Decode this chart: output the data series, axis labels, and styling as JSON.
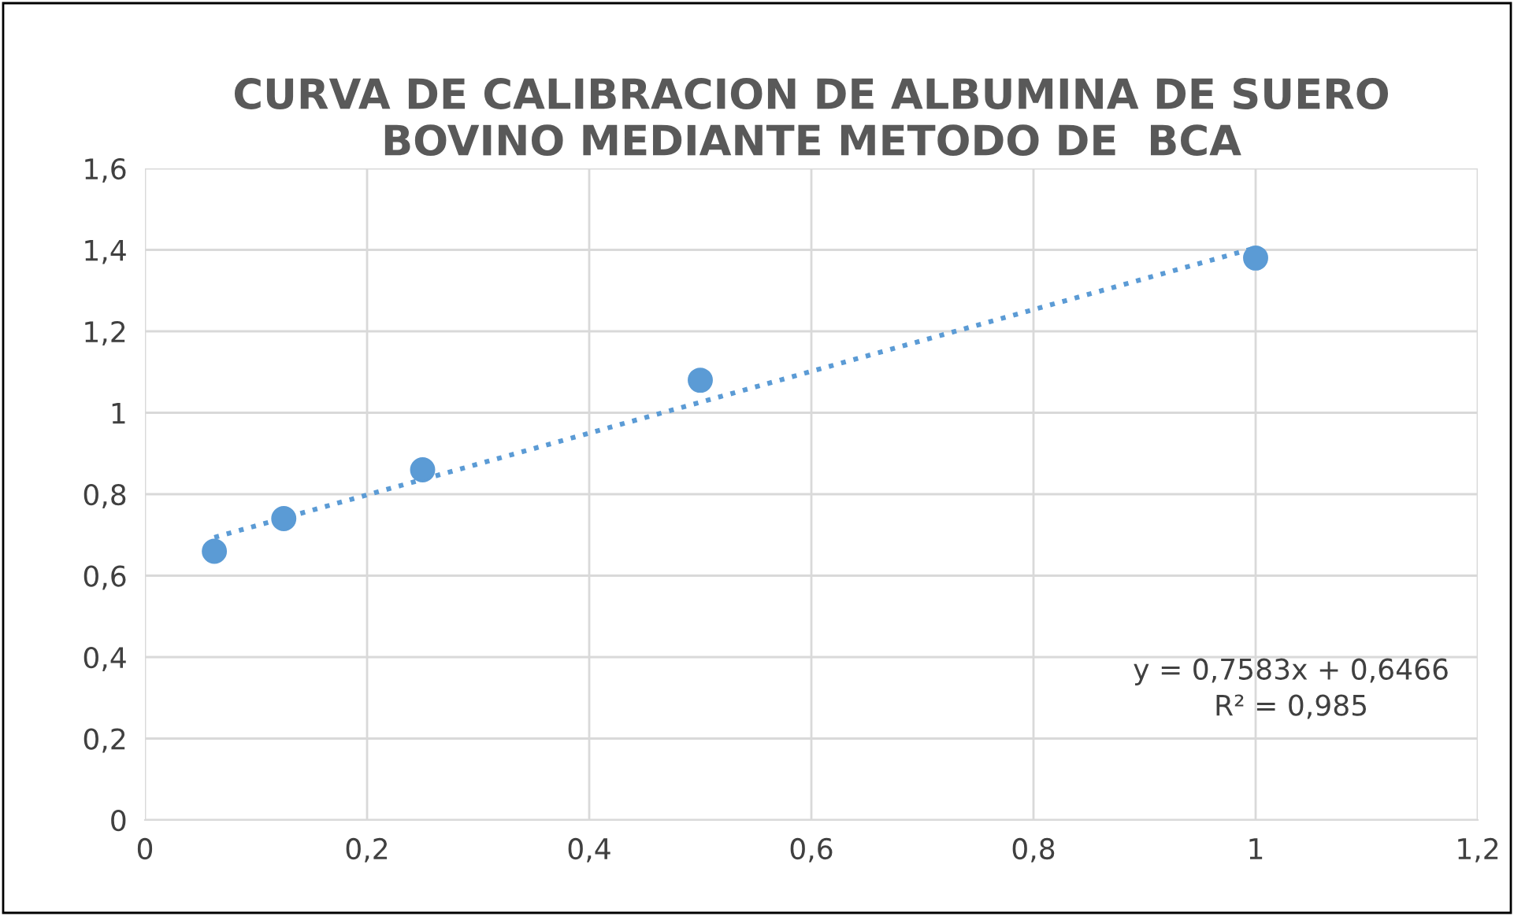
{
  "chart_data": {
    "type": "scatter",
    "title": "CURVA DE CALIBRACION DE ALBUMINA DE SUERO\nBOVINO MEDIANTE METODO DE  BCA",
    "series": [
      {
        "color": "#5b9bd5",
        "marker": "circle",
        "x": [
          0.0625,
          0.125,
          0.25,
          0.5,
          1
        ],
        "values": [
          0.66,
          0.74,
          0.86,
          1.08,
          1.38
        ]
      },
      {
        "type": "line",
        "color": "#5b9bd5",
        "line_style": "dotted",
        "marker": "none",
        "x": [
          0.0625,
          1
        ],
        "values": [
          0.694,
          1.405
        ]
      }
    ],
    "xlim": [
      0,
      1.2
    ],
    "ylim": [
      0,
      1.6
    ],
    "xticks": [
      0,
      {
        "value": 0.2,
        "label": "0,2"
      },
      {
        "value": 0.4,
        "label": "0,4"
      },
      {
        "value": 0.6,
        "label": "0,6"
      },
      {
        "value": 0.8,
        "label": "0,8"
      },
      1,
      {
        "value": 1.2,
        "label": "1,2"
      }
    ],
    "yticks": [
      0,
      {
        "value": 0.2,
        "label": "0,2"
      },
      {
        "value": 0.4,
        "label": "0,4"
      },
      {
        "value": 0.6,
        "label": "0,6"
      },
      {
        "value": 0.8,
        "label": "0,8"
      },
      1,
      {
        "value": 1.2,
        "label": "1,2"
      },
      {
        "value": 1.4,
        "label": "1,4"
      },
      {
        "value": 1.6,
        "label": "1,6"
      }
    ],
    "grid": true,
    "annotations": [
      "y = 0,7583x + 0,6466\nR² = 0,985"
    ]
  }
}
